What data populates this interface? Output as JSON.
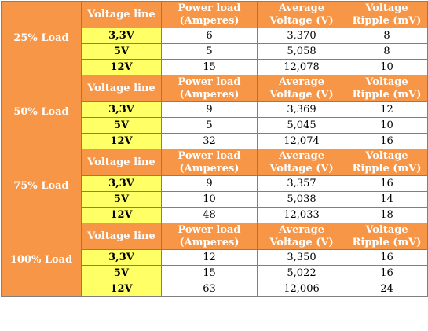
{
  "headers": {
    "voltage_line": "Voltage line",
    "power_load_1": "Power load",
    "power_load_2": "(Amperes)",
    "avg_voltage_1": "Average",
    "avg_voltage_2": "Voltage (V)",
    "ripple_1": "Voltage",
    "ripple_2": "Ripple (mV)"
  },
  "groups": [
    {
      "load": "25% Load",
      "rows": [
        {
          "line": "3,3V",
          "amps": "6",
          "voltage": "3,370",
          "ripple": "8"
        },
        {
          "line": "5V",
          "amps": "5",
          "voltage": "5,058",
          "ripple": "8"
        },
        {
          "line": "12V",
          "amps": "15",
          "voltage": "12,078",
          "ripple": "10"
        }
      ]
    },
    {
      "load": "50% Load",
      "rows": [
        {
          "line": "3,3V",
          "amps": "9",
          "voltage": "3,369",
          "ripple": "12"
        },
        {
          "line": "5V",
          "amps": "5",
          "voltage": "5,045",
          "ripple": "10"
        },
        {
          "line": "12V",
          "amps": "32",
          "voltage": "12,074",
          "ripple": "16"
        }
      ]
    },
    {
      "load": "75% Load",
      "rows": [
        {
          "line": "3,3V",
          "amps": "9",
          "voltage": "3,357",
          "ripple": "16"
        },
        {
          "line": "5V",
          "amps": "10",
          "voltage": "5,038",
          "ripple": "14"
        },
        {
          "line": "12V",
          "amps": "48",
          "voltage": "12,033",
          "ripple": "18"
        }
      ]
    },
    {
      "load": "100% Load",
      "rows": [
        {
          "line": "3,3V",
          "amps": "12",
          "voltage": "3,350",
          "ripple": "16"
        },
        {
          "line": "5V",
          "amps": "15",
          "voltage": "5,022",
          "ripple": "16"
        },
        {
          "line": "12V",
          "amps": "63",
          "voltage": "12,006",
          "ripple": "24"
        }
      ]
    }
  ],
  "colors": {
    "header_orange": "#f79646",
    "line_yellow": "#ffff66",
    "header_text": "#ffffff"
  }
}
